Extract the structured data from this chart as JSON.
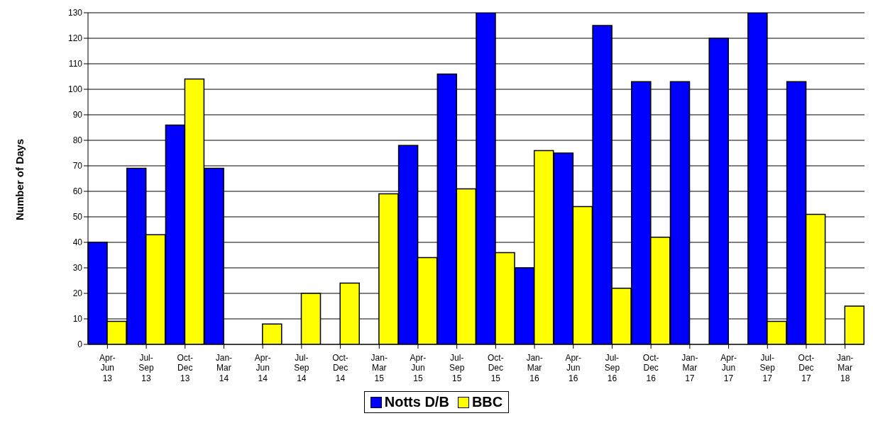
{
  "chart_data": {
    "type": "bar",
    "ylabel": "Number of Days",
    "categories": [
      "Apr-\nJun\n13",
      "Jul-\nSep\n13",
      "Oct-\nDec\n13",
      "Jan-\nMar\n14",
      "Apr-\nJun\n14",
      "Jul-\nSep\n14",
      "Oct-\nDec\n14",
      "Jan-\nMar\n15",
      "Apr-\nJun\n15",
      "Jul-\nSep\n15",
      "Oct-\nDec\n15",
      "Jan-\nMar\n16",
      "Apr-\nJun\n16",
      "Jul-\nSep\n16",
      "Oct-\nDec\n16",
      "Jan-\nMar\n17",
      "Apr-\nJun\n17",
      "Jul-\nSep\n17",
      "Oct-\nDec\n17",
      "Jan-\nMar\n18"
    ],
    "series": [
      {
        "name": "Notts D/B",
        "color": "#0000ff",
        "values": [
          40,
          69,
          86,
          69,
          0,
          0,
          0,
          0,
          78,
          106,
          130,
          30,
          75,
          125,
          103,
          103,
          120,
          130,
          103,
          0
        ]
      },
      {
        "name": "BBC",
        "color": "#ffff00",
        "values": [
          9,
          43,
          104,
          0,
          8,
          20,
          24,
          59,
          34,
          61,
          36,
          76,
          54,
          22,
          42,
          0,
          0,
          9,
          51,
          15
        ]
      }
    ],
    "ylim": [
      0,
      130
    ],
    "yticks": [
      0,
      10,
      20,
      30,
      40,
      50,
      60,
      70,
      80,
      90,
      100,
      110,
      120,
      130
    ],
    "grid": "y",
    "legend": "bottom"
  }
}
